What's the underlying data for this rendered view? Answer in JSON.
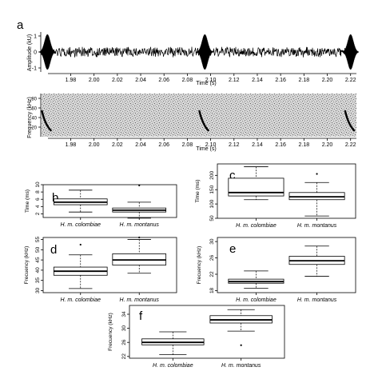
{
  "figure": {
    "panel_a_letter": "a",
    "waveform_ylabel": "Amplitude (kU)",
    "spectrogram_ylabel": "Frequency (kHz)",
    "xlabel": "Time (s)",
    "box_categories": [
      "H. m. colombiae",
      "H. m. montanus"
    ]
  },
  "chart_data": [
    {
      "type": "line",
      "panel": "a-waveform",
      "xlabel": "Time (s)",
      "ylabel": "Amplitude (kU)",
      "xlim": [
        1.955,
        2.225
      ],
      "ylim": [
        -1,
        1
      ],
      "x_ticks": [
        "1.98",
        "2.00",
        "2.02",
        "2.04",
        "2.06",
        "2.08",
        "2.10",
        "2.12",
        "2.14",
        "2.16",
        "2.18",
        "2.20",
        "2.22"
      ],
      "y_ticks": [
        "-1",
        "0",
        "1"
      ],
      "call_onsets_s": [
        1.96,
        2.095,
        2.22
      ]
    },
    {
      "type": "heatmap",
      "panel": "a-spectrogram",
      "xlabel": "Time (s)",
      "ylabel": "Frequency (kHz)",
      "xlim": [
        1.955,
        2.225
      ],
      "ylim": [
        0,
        90
      ],
      "x_ticks": [
        "1.98",
        "2.00",
        "2.02",
        "2.04",
        "2.06",
        "2.08",
        "2.10",
        "2.12",
        "2.14",
        "2.16",
        "2.18",
        "2.20",
        "2.22"
      ],
      "y_ticks": [
        "20",
        "40",
        "60",
        "80"
      ],
      "call_onsets_s": [
        1.96,
        2.095,
        2.22
      ]
    },
    {
      "type": "box",
      "panel": "b",
      "letter": "b",
      "ylabel": "Time (ms)",
      "ylim": [
        1,
        10
      ],
      "y_ticks": [
        "2",
        "4",
        "6",
        "8",
        "10"
      ],
      "categories": [
        "H. m. colombiae",
        "H. m. montanus"
      ],
      "boxes": [
        {
          "min": 2.5,
          "q1": 4.5,
          "median": 5.2,
          "q3": 6.1,
          "max": 8.5,
          "outliers": []
        },
        {
          "min": 0.8,
          "q1": 2.5,
          "median": 3.0,
          "q3": 3.6,
          "max": 5.2,
          "outliers": [
            9.8
          ]
        }
      ]
    },
    {
      "type": "box",
      "panel": "c",
      "letter": "c",
      "ylabel": "Time (ms)",
      "ylim": [
        50,
        240
      ],
      "y_ticks": [
        "50",
        "100",
        "150",
        "200"
      ],
      "categories": [
        "H. m. colombiae",
        "H. m. montanus"
      ],
      "boxes": [
        {
          "min": 115,
          "q1": 128,
          "median": 140,
          "q3": 190,
          "max": 230,
          "outliers": []
        },
        {
          "min": 58,
          "q1": 115,
          "median": 125,
          "q3": 140,
          "max": 175,
          "outliers": [
            205
          ]
        }
      ]
    },
    {
      "type": "box",
      "panel": "d",
      "letter": "d",
      "ylabel": "Frecuency (kHz)",
      "ylim": [
        29,
        56
      ],
      "y_ticks": [
        "30",
        "35",
        "40",
        "45",
        "50",
        "55"
      ],
      "categories": [
        "H. m. colombiae",
        "H. m. montanus"
      ],
      "boxes": [
        {
          "min": 31,
          "q1": 37.5,
          "median": 39.5,
          "q3": 41.5,
          "max": 47.5,
          "outliers": [
            52.5
          ]
        },
        {
          "min": 38.5,
          "q1": 42.5,
          "median": 45,
          "q3": 48,
          "max": 55,
          "outliers": [
            56
          ]
        }
      ]
    },
    {
      "type": "box",
      "panel": "e",
      "letter": "e",
      "ylabel": "Frecuency (kHz)",
      "ylim": [
        17.5,
        31
      ],
      "y_ticks": [
        "18",
        "22",
        "26",
        "30"
      ],
      "categories": [
        "H. m. colombiae",
        "H. m. montanus"
      ],
      "boxes": [
        {
          "min": 18.6,
          "q1": 19.8,
          "median": 20.2,
          "q3": 20.8,
          "max": 22.8,
          "outliers": []
        },
        {
          "min": 21.5,
          "q1": 24.4,
          "median": 25.3,
          "q3": 26.4,
          "max": 28.9,
          "outliers": []
        }
      ]
    },
    {
      "type": "box",
      "panel": "f",
      "letter": "f",
      "ylabel": "Frecuency (kHz)",
      "ylim": [
        21.5,
        36.5
      ],
      "y_ticks": [
        "22",
        "26",
        "30",
        "34"
      ],
      "categories": [
        "H. m. colombiae",
        "H. m. montanus"
      ],
      "boxes": [
        {
          "min": 22.5,
          "q1": 25.3,
          "median": 26.0,
          "q3": 27.0,
          "max": 29.0,
          "outliers": []
        },
        {
          "min": 29.2,
          "q1": 31.5,
          "median": 32.4,
          "q3": 33.6,
          "max": 35.3,
          "outliers": [
            25.2
          ]
        }
      ]
    }
  ]
}
